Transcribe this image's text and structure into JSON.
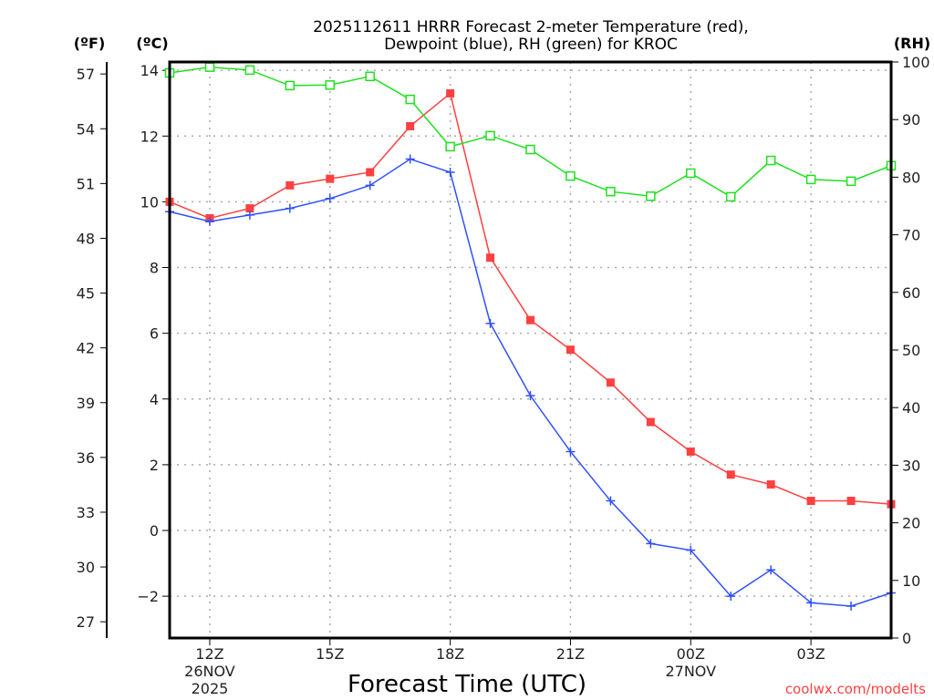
{
  "chart_data": {
    "type": "line",
    "title_line1": "2025112611 HRRR Forecast 2-meter Temperature (red),",
    "title_line2": "Dewpoint (blue), RH (green) for KROC",
    "xlabel": "Forecast Time (UTC)",
    "credit": "coolwx.com/modelts",
    "unit_labels": {
      "fahrenheit": "(ºF)",
      "celsius": "(ºC)",
      "rh": "(RH)"
    },
    "x_hours": [
      11,
      12,
      13,
      14,
      15,
      16,
      17,
      18,
      19,
      20,
      21,
      22,
      23,
      24,
      25,
      26,
      27,
      28,
      29
    ],
    "x_range": [
      11,
      29
    ],
    "x_ticks": [
      {
        "hour": 12,
        "label": "12Z",
        "sub1": "26NOV",
        "sub2": "2025"
      },
      {
        "hour": 15,
        "label": "15Z",
        "sub1": "",
        "sub2": ""
      },
      {
        "hour": 18,
        "label": "18Z",
        "sub1": "",
        "sub2": ""
      },
      {
        "hour": 21,
        "label": "21Z",
        "sub1": "",
        "sub2": ""
      },
      {
        "hour": 24,
        "label": "00Z",
        "sub1": "27NOV",
        "sub2": ""
      },
      {
        "hour": 27,
        "label": "03Z",
        "sub1": "",
        "sub2": ""
      }
    ],
    "celsius_range": [
      -3.4,
      14.3
    ],
    "celsius_ticks": [
      14,
      12,
      10,
      8,
      6,
      4,
      2,
      0,
      -2
    ],
    "fahrenheit_ticks": [
      57,
      54,
      51,
      48,
      45,
      42,
      39,
      36,
      33,
      30,
      27
    ],
    "rh_range": [
      0,
      100
    ],
    "rh_ticks": [
      100,
      90,
      80,
      70,
      60,
      50,
      40,
      30,
      20,
      10,
      0
    ],
    "grid": true,
    "series": [
      {
        "name": "Temperature",
        "axis": "celsius",
        "color": "#ff4040",
        "marker": "filled-square",
        "values": [
          10.0,
          9.5,
          9.8,
          10.5,
          10.7,
          10.9,
          12.3,
          13.3,
          8.3,
          6.4,
          5.5,
          4.5,
          3.3,
          2.4,
          1.7,
          1.4,
          0.9,
          0.9,
          0.8
        ]
      },
      {
        "name": "Dewpoint",
        "axis": "celsius",
        "color": "#3050ff",
        "marker": "plus",
        "values": [
          9.7,
          9.4,
          9.6,
          9.8,
          10.1,
          10.5,
          11.3,
          10.9,
          6.3,
          4.1,
          2.4,
          0.9,
          -0.4,
          -0.6,
          -2.0,
          -1.2,
          -2.2,
          -2.3,
          -1.9
        ]
      },
      {
        "name": "RH",
        "axis": "rh",
        "color": "#20e020",
        "marker": "open-square",
        "values": [
          98.1,
          99.1,
          98.6,
          95.9,
          96.0,
          97.5,
          93.5,
          85.3,
          87.2,
          84.8,
          80.2,
          77.5,
          76.7,
          80.7,
          76.6,
          82.9,
          79.6,
          79.3,
          82.0
        ]
      }
    ]
  }
}
